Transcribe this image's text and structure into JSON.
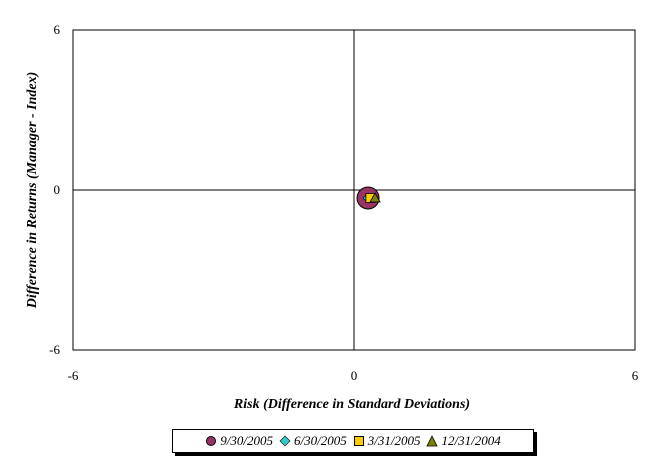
{
  "chart_data": {
    "type": "scatter",
    "xlabel": "Risk (Difference in Standard Deviations)",
    "ylabel": "Difference in Returns (Manager - Index)",
    "xlim": [
      -6,
      6
    ],
    "ylim": [
      -6,
      6
    ],
    "xticks": [
      "-6",
      "0",
      "6"
    ],
    "yticks": [
      "6",
      "0",
      "-6"
    ],
    "grid": false,
    "legend_position": "bottom",
    "series": [
      {
        "name": "9/30/2005",
        "marker": "circle",
        "color": "#993366",
        "x": 0.3,
        "y": -0.3
      },
      {
        "name": "6/30/2005",
        "marker": "diamond",
        "color": "#33cccc",
        "x": 0.3,
        "y": -0.3
      },
      {
        "name": "3/31/2005",
        "marker": "square",
        "color": "#ffcc00",
        "x": 0.35,
        "y": -0.3
      },
      {
        "name": "12/31/2004",
        "marker": "triangle",
        "color": "#808000",
        "x": 0.45,
        "y": -0.3
      }
    ]
  }
}
